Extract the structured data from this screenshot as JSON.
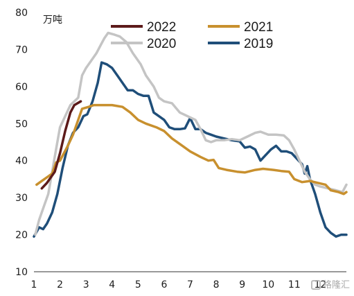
{
  "chart_data": {
    "type": "line",
    "unit_label": "万吨",
    "ylim": [
      10,
      80
    ],
    "yticks": [
      10,
      20,
      30,
      40,
      50,
      60,
      70,
      80
    ],
    "xlim": [
      1,
      13
    ],
    "xticks": [
      1,
      2,
      3,
      4,
      5,
      6,
      7,
      8,
      9,
      10,
      11,
      12
    ],
    "legend_placement": "top",
    "series": [
      {
        "name": "2022",
        "color": "#5c1a1a",
        "points": [
          [
            1.3,
            32.5
          ],
          [
            1.5,
            34
          ],
          [
            1.8,
            37
          ],
          [
            2.0,
            42
          ],
          [
            2.2,
            48
          ],
          [
            2.4,
            53
          ],
          [
            2.55,
            55
          ],
          [
            2.8,
            56
          ]
        ]
      },
      {
        "name": "2021",
        "color": "#c8902e",
        "points": [
          [
            1.1,
            33.5
          ],
          [
            1.3,
            34.5
          ],
          [
            1.5,
            35.5
          ],
          [
            1.7,
            36.5
          ],
          [
            1.85,
            39.5
          ],
          [
            2.0,
            40
          ],
          [
            2.3,
            44
          ],
          [
            2.5,
            47
          ],
          [
            2.7,
            51
          ],
          [
            2.85,
            54
          ],
          [
            3.1,
            54.5
          ],
          [
            3.3,
            55
          ],
          [
            3.6,
            55
          ],
          [
            4.0,
            55
          ],
          [
            4.4,
            54.5
          ],
          [
            4.7,
            53
          ],
          [
            5.0,
            51
          ],
          [
            5.3,
            50
          ],
          [
            5.7,
            49
          ],
          [
            6.0,
            48
          ],
          [
            6.3,
            46
          ],
          [
            6.7,
            44
          ],
          [
            7.0,
            42.5
          ],
          [
            7.4,
            41
          ],
          [
            7.7,
            40
          ],
          [
            7.9,
            40.2
          ],
          [
            8.1,
            38
          ],
          [
            8.4,
            37.5
          ],
          [
            8.8,
            37
          ],
          [
            9.1,
            36.8
          ],
          [
            9.5,
            37.5
          ],
          [
            9.8,
            37.8
          ],
          [
            10.2,
            37.5
          ],
          [
            10.5,
            37.2
          ],
          [
            10.8,
            37
          ],
          [
            11.0,
            35
          ],
          [
            11.3,
            34.2
          ],
          [
            11.6,
            34.5
          ],
          [
            11.9,
            34
          ],
          [
            12.2,
            33.5
          ],
          [
            12.4,
            32
          ],
          [
            12.7,
            31.5
          ],
          [
            12.9,
            31
          ],
          [
            13.0,
            31.5
          ]
        ]
      },
      {
        "name": "2020",
        "color": "#c4c4c4",
        "points": [
          [
            1.05,
            20
          ],
          [
            1.2,
            24
          ],
          [
            1.4,
            28
          ],
          [
            1.55,
            31
          ],
          [
            1.7,
            37
          ],
          [
            1.85,
            43
          ],
          [
            2.0,
            49
          ],
          [
            2.2,
            52
          ],
          [
            2.4,
            55
          ],
          [
            2.55,
            56
          ],
          [
            2.7,
            57
          ],
          [
            2.85,
            63
          ],
          [
            3.0,
            65
          ],
          [
            3.2,
            67
          ],
          [
            3.4,
            69
          ],
          [
            3.55,
            71
          ],
          [
            3.7,
            73
          ],
          [
            3.85,
            74.5
          ],
          [
            4.1,
            74
          ],
          [
            4.3,
            73.5
          ],
          [
            4.55,
            72
          ],
          [
            4.8,
            69
          ],
          [
            5.1,
            66
          ],
          [
            5.3,
            63
          ],
          [
            5.6,
            60
          ],
          [
            5.8,
            57
          ],
          [
            6.0,
            56
          ],
          [
            6.3,
            55.5
          ],
          [
            6.6,
            53
          ],
          [
            6.9,
            52
          ],
          [
            7.2,
            51
          ],
          [
            7.4,
            48.5
          ],
          [
            7.6,
            45.5
          ],
          [
            7.8,
            45
          ],
          [
            8.0,
            45.5
          ],
          [
            8.3,
            45.5
          ],
          [
            8.6,
            45.8
          ],
          [
            8.9,
            45.5
          ],
          [
            9.2,
            46.5
          ],
          [
            9.5,
            47.5
          ],
          [
            9.7,
            47.8
          ],
          [
            10.0,
            47
          ],
          [
            10.3,
            47
          ],
          [
            10.6,
            46.8
          ],
          [
            10.8,
            45.5
          ],
          [
            11.0,
            43
          ],
          [
            11.2,
            40
          ],
          [
            11.4,
            37
          ],
          [
            11.6,
            35
          ],
          [
            11.8,
            33.5
          ],
          [
            12.0,
            33
          ],
          [
            12.3,
            32.5
          ],
          [
            12.6,
            32
          ],
          [
            12.85,
            31.5
          ],
          [
            13.0,
            33.5
          ]
        ]
      },
      {
        "name": "2019",
        "color": "#1f4e79",
        "points": [
          [
            1.0,
            19.5
          ],
          [
            1.2,
            22
          ],
          [
            1.35,
            21.5
          ],
          [
            1.5,
            23
          ],
          [
            1.7,
            26
          ],
          [
            1.9,
            31
          ],
          [
            2.1,
            38
          ],
          [
            2.3,
            44
          ],
          [
            2.5,
            47.5
          ],
          [
            2.7,
            49
          ],
          [
            2.9,
            52
          ],
          [
            3.05,
            52.5
          ],
          [
            3.25,
            56
          ],
          [
            3.45,
            61
          ],
          [
            3.6,
            66.5
          ],
          [
            3.8,
            66
          ],
          [
            4.0,
            65
          ],
          [
            4.2,
            63
          ],
          [
            4.4,
            61
          ],
          [
            4.6,
            59
          ],
          [
            4.8,
            59
          ],
          [
            5.0,
            58
          ],
          [
            5.2,
            57.5
          ],
          [
            5.4,
            57.5
          ],
          [
            5.6,
            53
          ],
          [
            5.8,
            52
          ],
          [
            6.0,
            51
          ],
          [
            6.2,
            49
          ],
          [
            6.4,
            48.5
          ],
          [
            6.6,
            48.5
          ],
          [
            6.8,
            48.7
          ],
          [
            7.0,
            51.5
          ],
          [
            7.2,
            48.5
          ],
          [
            7.4,
            48.5
          ],
          [
            7.6,
            47.5
          ],
          [
            7.8,
            47
          ],
          [
            8.0,
            46.5
          ],
          [
            8.3,
            46
          ],
          [
            8.6,
            45.5
          ],
          [
            8.9,
            45.2
          ],
          [
            9.1,
            43.5
          ],
          [
            9.3,
            43.8
          ],
          [
            9.5,
            43
          ],
          [
            9.7,
            40
          ],
          [
            9.9,
            41.5
          ],
          [
            10.1,
            43
          ],
          [
            10.3,
            44
          ],
          [
            10.5,
            42.5
          ],
          [
            10.7,
            42.5
          ],
          [
            10.9,
            42
          ],
          [
            11.1,
            40.5
          ],
          [
            11.3,
            39
          ],
          [
            11.4,
            36.5
          ],
          [
            11.5,
            38.5
          ],
          [
            11.6,
            35
          ],
          [
            11.8,
            31
          ],
          [
            12.0,
            26
          ],
          [
            12.2,
            22
          ],
          [
            12.4,
            20.5
          ],
          [
            12.6,
            19.5
          ],
          [
            12.8,
            20
          ],
          [
            13.0,
            20
          ]
        ]
      }
    ]
  },
  "watermark": {
    "text": "格隆汇",
    "icon": "watermark-logo-icon"
  }
}
